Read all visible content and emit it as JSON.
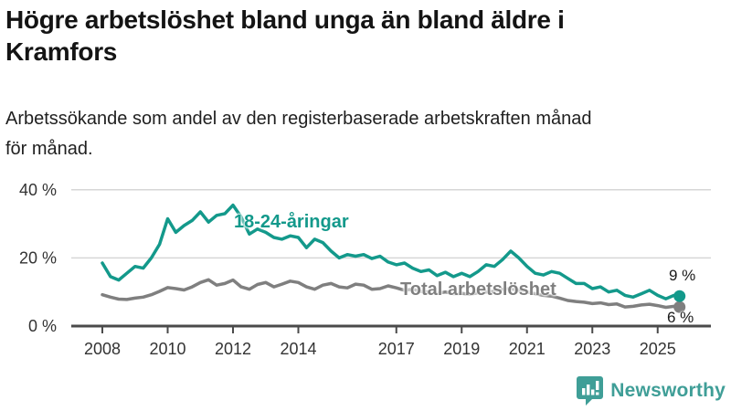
{
  "header": {
    "title_line1": "Högre arbetslöshet bland unga än bland äldre i",
    "title_line2": "Kramfors",
    "subtitle_line1": "Arbetssökande som andel av den registerbaserade arbetskraften månad",
    "subtitle_line2": "för månad."
  },
  "chart_data": {
    "type": "line",
    "title": "Arbetssökande som andel av den registerbaserade arbetskraften månad för månad",
    "grid": true,
    "legend_position": "inline-labels",
    "y_axis": {
      "range": [
        0,
        43
      ],
      "ticks": [
        {
          "value": 0,
          "label": "0 %"
        },
        {
          "value": 20,
          "label": "20 %"
        },
        {
          "value": 40,
          "label": "40 %"
        }
      ]
    },
    "x_axis": {
      "range": [
        2007.05,
        2026.6
      ],
      "ticks": [
        2008,
        2010,
        2012,
        2014,
        2017,
        2019,
        2021,
        2023,
        2025
      ]
    },
    "x": [
      2008,
      2008.25,
      2008.5,
      2008.75,
      2009,
      2009.25,
      2009.5,
      2009.75,
      2010,
      2010.25,
      2010.5,
      2010.75,
      2011,
      2011.25,
      2011.5,
      2011.75,
      2012,
      2012.25,
      2012.5,
      2012.75,
      2013,
      2013.25,
      2013.5,
      2013.75,
      2014,
      2014.25,
      2014.5,
      2014.75,
      2015,
      2015.25,
      2015.5,
      2015.75,
      2016,
      2016.25,
      2016.5,
      2016.75,
      2017,
      2017.25,
      2017.5,
      2017.75,
      2018,
      2018.25,
      2018.5,
      2018.75,
      2019,
      2019.25,
      2019.5,
      2019.75,
      2020,
      2020.25,
      2020.5,
      2020.75,
      2021,
      2021.25,
      2021.5,
      2021.75,
      2022,
      2022.25,
      2022.5,
      2022.75,
      2023,
      2023.25,
      2023.5,
      2023.75,
      2024,
      2024.25,
      2024.5,
      2024.75,
      2025,
      2025.25,
      2025.5,
      2025.67
    ],
    "series": [
      {
        "name": "18-24-åringar",
        "color": "#13998b",
        "end_label": "9 %",
        "values": [
          18.5,
          14.5,
          13.5,
          15.5,
          17.5,
          17.0,
          20.0,
          24.0,
          31.5,
          27.5,
          29.5,
          31.0,
          33.5,
          30.5,
          32.5,
          33.0,
          35.5,
          32.0,
          27.0,
          28.5,
          27.5,
          26.0,
          25.5,
          26.5,
          26.0,
          23.0,
          25.5,
          24.5,
          22.0,
          20.0,
          21.0,
          20.5,
          21.0,
          19.8,
          20.5,
          18.8,
          18.0,
          18.5,
          17.0,
          16.0,
          16.5,
          14.8,
          15.8,
          14.5,
          15.5,
          14.5,
          16.0,
          18.0,
          17.5,
          19.5,
          22.0,
          20.0,
          17.5,
          15.5,
          15.0,
          16.0,
          15.5,
          14.0,
          12.5,
          12.5,
          11.0,
          11.5,
          10.0,
          10.5,
          9.0,
          8.5,
          9.5,
          10.5,
          9.0,
          8.0,
          9.0,
          8.8
        ]
      },
      {
        "name": "Total arbetslöshet",
        "color": "#7f7f7f",
        "end_label": "6 %",
        "values": [
          9.2,
          8.5,
          7.9,
          7.8,
          8.2,
          8.5,
          9.2,
          10.2,
          11.3,
          11.0,
          10.6,
          11.5,
          12.8,
          13.6,
          12.0,
          12.5,
          13.5,
          11.5,
          10.8,
          12.2,
          12.8,
          11.5,
          12.3,
          13.2,
          12.8,
          11.5,
          10.8,
          12.0,
          12.5,
          11.5,
          11.2,
          12.3,
          12.0,
          10.8,
          11.0,
          11.8,
          11.2,
          10.5,
          10.8,
          10.2,
          10.0,
          9.6,
          10.0,
          9.5,
          9.6,
          9.3,
          9.8,
          10.0,
          10.2,
          10.8,
          11.0,
          10.5,
          10.0,
          9.5,
          9.0,
          8.8,
          8.2,
          7.5,
          7.2,
          7.0,
          6.6,
          6.8,
          6.3,
          6.5,
          5.6,
          5.8,
          6.2,
          6.4,
          6.0,
          5.5,
          5.8,
          5.6
        ]
      }
    ],
    "style": {
      "grid_color": "#d6d6d6",
      "axis_color": "#4a4a4a",
      "tick_label_color": "#333333"
    }
  },
  "footer": {
    "brand": "Newsworthy",
    "brand_color": "#3f9e97",
    "icon": "bar-chart-speech-bubble-icon"
  }
}
